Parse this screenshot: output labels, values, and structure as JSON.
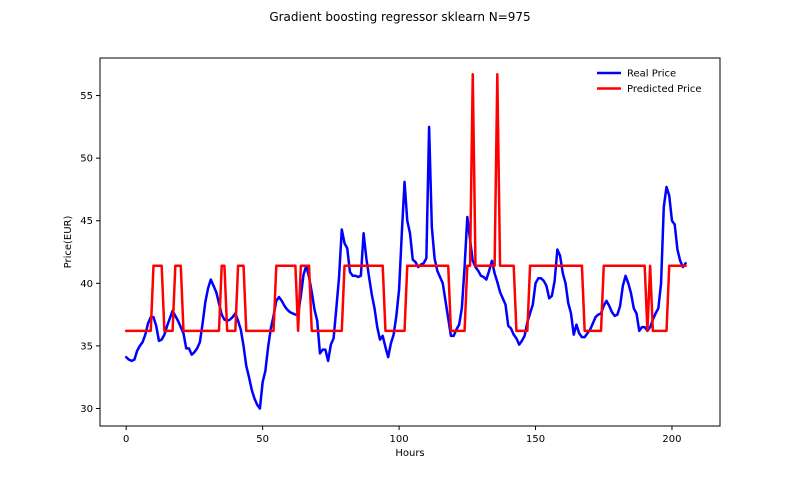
{
  "chart_data": {
    "type": "line",
    "title": "Gradient boosting regressor sklearn N=975",
    "xlabel": "Hours",
    "ylabel": "Price(EUR)",
    "xlim": [
      -9.6,
      217.6
    ],
    "ylim": [
      28.6,
      58.0
    ],
    "xticks": [
      0,
      50,
      100,
      150,
      200
    ],
    "yticks": [
      30,
      35,
      40,
      45,
      50,
      55
    ],
    "grid": false,
    "legend_position": "top-right",
    "series": [
      {
        "name": "Real Price",
        "color": "#0000ff",
        "points": [
          [
            0,
            34.1
          ],
          [
            1,
            33.9
          ],
          [
            2,
            33.8
          ],
          [
            3,
            33.9
          ],
          [
            4,
            34.6
          ],
          [
            5,
            35.0
          ],
          [
            6,
            35.3
          ],
          [
            7,
            35.9
          ],
          [
            8,
            36.8
          ],
          [
            9,
            37.3
          ],
          [
            10,
            37.3
          ],
          [
            11,
            36.6
          ],
          [
            12,
            35.4
          ],
          [
            13,
            35.5
          ],
          [
            14,
            35.9
          ],
          [
            15,
            36.6
          ],
          [
            16,
            37.2
          ],
          [
            17,
            37.8
          ],
          [
            18,
            37.4
          ],
          [
            19,
            37.0
          ],
          [
            20,
            36.5
          ],
          [
            21,
            36.0
          ],
          [
            22,
            34.8
          ],
          [
            23,
            34.8
          ],
          [
            24,
            34.3
          ],
          [
            25,
            34.5
          ],
          [
            26,
            34.8
          ],
          [
            27,
            35.3
          ],
          [
            28,
            36.8
          ],
          [
            29,
            38.5
          ],
          [
            30,
            39.6
          ],
          [
            31,
            40.3
          ],
          [
            32,
            39.8
          ],
          [
            33,
            39.3
          ],
          [
            34,
            38.4
          ],
          [
            35,
            37.5
          ],
          [
            36,
            37.1
          ],
          [
            37,
            37.0
          ],
          [
            38,
            37.1
          ],
          [
            39,
            37.3
          ],
          [
            40,
            37.6
          ],
          [
            41,
            37.0
          ],
          [
            42,
            36.3
          ],
          [
            43,
            35.0
          ],
          [
            44,
            33.4
          ],
          [
            45,
            32.5
          ],
          [
            46,
            31.5
          ],
          [
            47,
            30.8
          ],
          [
            48,
            30.3
          ],
          [
            49,
            30.0
          ],
          [
            50,
            32.1
          ],
          [
            51,
            33.0
          ],
          [
            52,
            34.9
          ],
          [
            53,
            36.4
          ],
          [
            54,
            37.4
          ],
          [
            55,
            38.6
          ],
          [
            56,
            38.9
          ],
          [
            57,
            38.6
          ],
          [
            58,
            38.2
          ],
          [
            59,
            37.9
          ],
          [
            60,
            37.7
          ],
          [
            61,
            37.6
          ],
          [
            62,
            37.5
          ],
          [
            63,
            37.5
          ],
          [
            64,
            39.0
          ],
          [
            65,
            40.7
          ],
          [
            66,
            41.4
          ],
          [
            67,
            40.5
          ],
          [
            68,
            39.3
          ],
          [
            69,
            37.9
          ],
          [
            70,
            37.0
          ],
          [
            71,
            34.4
          ],
          [
            72,
            34.7
          ],
          [
            73,
            34.7
          ],
          [
            74,
            33.8
          ],
          [
            75,
            35.1
          ],
          [
            76,
            35.6
          ],
          [
            77,
            38.0
          ],
          [
            78,
            40.5
          ],
          [
            79,
            44.3
          ],
          [
            80,
            43.2
          ],
          [
            81,
            42.8
          ],
          [
            82,
            40.9
          ],
          [
            83,
            40.6
          ],
          [
            84,
            40.6
          ],
          [
            85,
            40.5
          ],
          [
            86,
            40.6
          ],
          [
            87,
            44.0
          ],
          [
            88,
            42.0
          ],
          [
            89,
            40.5
          ],
          [
            90,
            39.1
          ],
          [
            91,
            38.0
          ],
          [
            92,
            36.5
          ],
          [
            93,
            35.5
          ],
          [
            94,
            35.8
          ],
          [
            95,
            34.9
          ],
          [
            96,
            34.1
          ],
          [
            97,
            35.2
          ],
          [
            98,
            35.9
          ],
          [
            99,
            37.4
          ],
          [
            100,
            39.5
          ],
          [
            101,
            44.0
          ],
          [
            102,
            48.1
          ],
          [
            103,
            45.0
          ],
          [
            104,
            44.0
          ],
          [
            105,
            41.9
          ],
          [
            106,
            41.7
          ],
          [
            107,
            41.3
          ],
          [
            108,
            41.5
          ],
          [
            109,
            41.6
          ],
          [
            110,
            42.0
          ],
          [
            111,
            52.5
          ],
          [
            112,
            44.5
          ],
          [
            113,
            42.0
          ],
          [
            114,
            41.0
          ],
          [
            115,
            40.5
          ],
          [
            116,
            40.0
          ],
          [
            117,
            38.6
          ],
          [
            118,
            37.2
          ],
          [
            119,
            35.8
          ],
          [
            120,
            35.8
          ],
          [
            121,
            36.3
          ],
          [
            122,
            36.7
          ],
          [
            123,
            38.0
          ],
          [
            124,
            41.3
          ],
          [
            125,
            45.3
          ],
          [
            126,
            43.5
          ],
          [
            127,
            41.8
          ],
          [
            128,
            41.3
          ],
          [
            129,
            41.0
          ],
          [
            130,
            40.6
          ],
          [
            131,
            40.5
          ],
          [
            132,
            40.3
          ],
          [
            133,
            41.0
          ],
          [
            134,
            41.8
          ],
          [
            135,
            40.8
          ],
          [
            136,
            40.1
          ],
          [
            137,
            39.3
          ],
          [
            138,
            38.8
          ],
          [
            139,
            38.3
          ],
          [
            140,
            36.6
          ],
          [
            141,
            36.4
          ],
          [
            142,
            35.9
          ],
          [
            143,
            35.6
          ],
          [
            144,
            35.1
          ],
          [
            145,
            35.4
          ],
          [
            146,
            35.8
          ],
          [
            147,
            36.9
          ],
          [
            148,
            37.6
          ],
          [
            149,
            38.3
          ],
          [
            150,
            40.0
          ],
          [
            151,
            40.4
          ],
          [
            152,
            40.4
          ],
          [
            153,
            40.2
          ],
          [
            154,
            39.8
          ],
          [
            155,
            38.8
          ],
          [
            156,
            39.0
          ],
          [
            157,
            40.2
          ],
          [
            158,
            42.7
          ],
          [
            159,
            42.2
          ],
          [
            160,
            40.8
          ],
          [
            161,
            40.0
          ],
          [
            162,
            38.4
          ],
          [
            163,
            37.6
          ],
          [
            164,
            35.9
          ],
          [
            165,
            36.7
          ],
          [
            166,
            36.0
          ],
          [
            167,
            35.7
          ],
          [
            168,
            35.7
          ],
          [
            169,
            36.0
          ],
          [
            170,
            36.3
          ],
          [
            171,
            36.8
          ],
          [
            172,
            37.3
          ],
          [
            173,
            37.5
          ],
          [
            174,
            37.6
          ],
          [
            175,
            38.2
          ],
          [
            176,
            38.6
          ],
          [
            177,
            38.2
          ],
          [
            178,
            37.7
          ],
          [
            179,
            37.4
          ],
          [
            180,
            37.5
          ],
          [
            181,
            38.2
          ],
          [
            182,
            39.8
          ],
          [
            183,
            40.6
          ],
          [
            184,
            40.0
          ],
          [
            185,
            39.2
          ],
          [
            186,
            38.0
          ],
          [
            187,
            37.6
          ],
          [
            188,
            36.2
          ],
          [
            189,
            36.5
          ],
          [
            190,
            36.5
          ],
          [
            191,
            36.2
          ],
          [
            192,
            36.5
          ],
          [
            193,
            37.1
          ],
          [
            194,
            37.6
          ],
          [
            195,
            38.0
          ],
          [
            196,
            40.0
          ],
          [
            197,
            46.1
          ],
          [
            198,
            47.7
          ],
          [
            199,
            47.0
          ],
          [
            200,
            45.0
          ],
          [
            201,
            44.7
          ],
          [
            202,
            42.7
          ],
          [
            203,
            41.8
          ],
          [
            204,
            41.3
          ],
          [
            205,
            41.6
          ]
        ]
      },
      {
        "name": "Predicted Price",
        "color": "#ff0000",
        "points": [
          [
            0,
            36.2
          ],
          [
            9,
            36.2
          ],
          [
            10,
            41.4
          ],
          [
            13,
            41.4
          ],
          [
            14,
            36.2
          ],
          [
            17,
            36.2
          ],
          [
            18,
            41.4
          ],
          [
            20,
            41.4
          ],
          [
            21,
            36.2
          ],
          [
            34,
            36.2
          ],
          [
            35,
            41.4
          ],
          [
            36,
            41.4
          ],
          [
            37,
            36.2
          ],
          [
            40,
            36.2
          ],
          [
            41,
            41.4
          ],
          [
            43,
            41.4
          ],
          [
            44,
            36.2
          ],
          [
            54,
            36.2
          ],
          [
            55,
            41.4
          ],
          [
            62,
            41.4
          ],
          [
            63,
            36.2
          ],
          [
            64,
            41.4
          ],
          [
            65,
            41.4
          ],
          [
            66,
            41.4
          ],
          [
            67,
            41.4
          ],
          [
            68,
            36.2
          ],
          [
            79,
            36.2
          ],
          [
            80,
            41.4
          ],
          [
            94,
            41.4
          ],
          [
            95,
            36.2
          ],
          [
            102,
            36.2
          ],
          [
            103,
            41.4
          ],
          [
            118,
            41.4
          ],
          [
            119,
            36.2
          ],
          [
            124,
            36.2
          ],
          [
            125,
            41.4
          ],
          [
            126,
            41.4
          ],
          [
            127,
            56.7
          ],
          [
            128,
            41.4
          ],
          [
            135,
            41.4
          ],
          [
            136,
            56.7
          ],
          [
            137,
            41.4
          ],
          [
            142,
            41.4
          ],
          [
            143,
            36.2
          ],
          [
            147,
            36.2
          ],
          [
            148,
            41.4
          ],
          [
            167,
            41.4
          ],
          [
            168,
            36.2
          ],
          [
            174,
            36.2
          ],
          [
            175,
            41.4
          ],
          [
            190,
            41.4
          ],
          [
            191,
            36.2
          ],
          [
            192,
            41.4
          ],
          [
            193,
            36.2
          ],
          [
            198,
            36.2
          ],
          [
            199,
            41.4
          ],
          [
            205,
            41.4
          ]
        ]
      }
    ]
  }
}
